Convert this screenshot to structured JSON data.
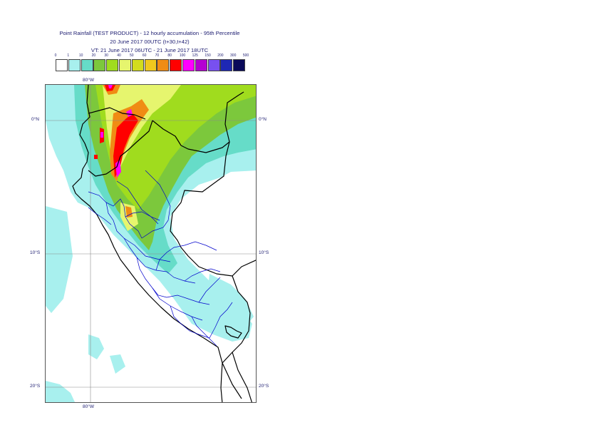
{
  "title": {
    "line1": "Point Rainfall (TEST PRODUCT) - 12 hourly accumulation - 95th Percentile",
    "line2": "20 June 2017 00UTC (t+30,t+42)",
    "line3": "VT: 21 June 2017 06UTC - 21 June 2017 18UTC"
  },
  "legend": {
    "thresholds": [
      "0",
      "1",
      "10",
      "20",
      "30",
      "40",
      "50",
      "60",
      "70",
      "80",
      "100",
      "125",
      "150",
      "200",
      "300",
      "500"
    ],
    "colors": [
      "#ffffff",
      "#a8f0ee",
      "#66dcc8",
      "#7cc83c",
      "#a0dc1e",
      "#e6f56e",
      "#d2dc1e",
      "#f0c81e",
      "#f08c14",
      "#ff0000",
      "#ff00ff",
      "#b400d2",
      "#7850f0",
      "#1e28b4",
      "#0a0a5a"
    ]
  },
  "map": {
    "lat_labels": {
      "eq_left": "0°N",
      "eq_right": "0°N",
      "ten_left": "10°S",
      "ten_right": "10°S",
      "twenty_left": "20°S",
      "twenty_right": "20°S"
    },
    "lon_labels": {
      "top": "80°W",
      "bottom": "80°W"
    },
    "colors": {
      "rain_light": "#a8f0ee",
      "rain_medium": "#66dcc8",
      "rain_green": "#7cc83c",
      "rain_lime": "#a0dc1e",
      "rain_yellow": "#e6f56e",
      "rain_orange": "#f08c14",
      "rain_red": "#ff0000",
      "rain_magenta": "#ff00ff",
      "border_country": "#000000",
      "border_region": "#0000cc",
      "gridline": "#8a8a8a"
    }
  }
}
